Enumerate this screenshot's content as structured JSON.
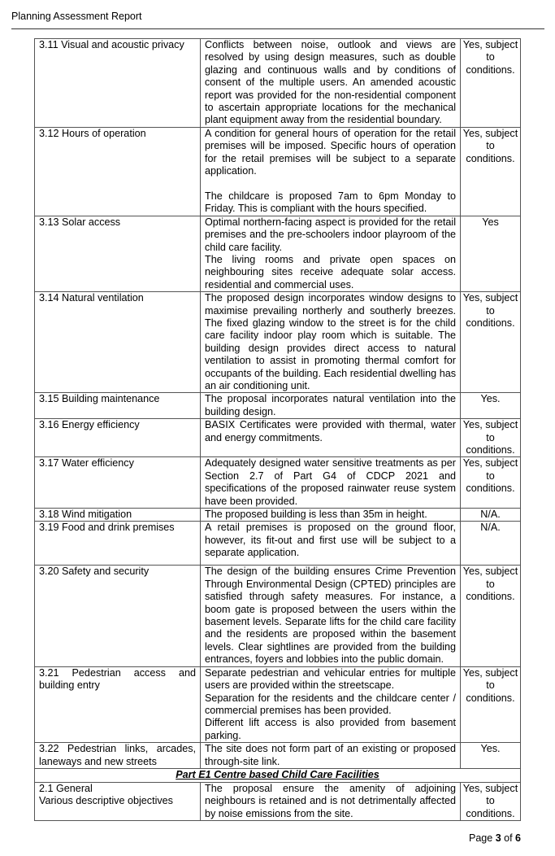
{
  "header": {
    "title": "Planning Assessment Report"
  },
  "rows": [
    {
      "clause": "3.11 Visual and acoustic privacy",
      "comment": "Conflicts between noise, outlook and views are resolved by using design measures, such as double glazing and continuous walls and by conditions of consent of the multiple users. An amended acoustic report was provided for the non-residential component to ascertain appropriate locations for the mechanical plant equipment away from the residential boundary.",
      "compliance": "Yes, subject to conditions."
    },
    {
      "clause": "3.12 Hours of operation",
      "comment": "A condition for general hours of operation for the retail premises will be imposed. Specific hours of operation for the retail premises will be subject to a separate application.\n\nThe childcare is proposed 7am to 6pm Monday to Friday. This is compliant with the hours specified.",
      "compliance": "Yes, subject to conditions."
    },
    {
      "clause": "3.13 Solar access",
      "comment": "Optimal northern-facing aspect is provided for the retail premises and the pre-schoolers indoor playroom of the child care facility.\nThe living rooms and private open spaces on neighbouring sites receive adequate solar access. residential and commercial uses.",
      "compliance": "Yes"
    },
    {
      "clause": "3.14 Natural ventilation",
      "comment": "The proposed design incorporates window designs to maximise prevailing northerly and southerly breezes. The fixed glazing window to the street is for the child care facility indoor play room which is suitable. The building design provides direct access to natural ventilation to assist in promoting thermal comfort for occupants of the building. Each residential dwelling has an air conditioning unit.",
      "compliance": "Yes, subject to conditions."
    },
    {
      "clause": "3.15 Building maintenance",
      "comment": "The proposal incorporates natural ventilation into the building design.",
      "compliance": "Yes."
    },
    {
      "clause": "3.16 Energy efficiency",
      "comment": "BASIX Certificates were provided with thermal, water and energy commitments.",
      "compliance": "Yes, subject to conditions."
    },
    {
      "clause": "3.17 Water efficiency",
      "comment": "Adequately designed water sensitive treatments as per Section 2.7 of Part G4 of CDCP 2021 and specifications of the proposed rainwater reuse system have been provided.",
      "compliance": "Yes, subject to conditions."
    },
    {
      "clause": "3.18 Wind mitigation",
      "comment": "The proposed building is less than 35m in height.",
      "compliance": "N/A."
    },
    {
      "clause": "3.19 Food and drink premises",
      "comment": "A retail premises is proposed on the ground floor, however, its fit-out and first use will be subject to a separate application.",
      "compliance": "N/A."
    },
    {
      "clause": "3.20 Safety and security",
      "comment": "The design of the building ensures Crime Prevention Through Environmental Design (CPTED) principles are satisfied through safety measures. For instance, a boom gate is proposed between the users within the basement levels. Separate lifts for the child care facility and the residents are proposed within the basement levels. Clear sightlines are provided from the building entrances, foyers and lobbies into the public domain.",
      "compliance": "Yes, subject to conditions."
    },
    {
      "clause": "3.21 Pedestrian access and building entry",
      "comment": "Separate pedestrian and vehicular entries for multiple users are provided within the streetscape.\nSeparation for the residents and the childcare center / commercial premises has been provided.\nDifferent lift access is also provided from basement parking.",
      "compliance": "Yes, subject to conditions."
    },
    {
      "clause": "3.22 Pedestrian links, arcades, laneways and new streets",
      "comment": "The site does not form part of an existing or proposed through-site link.",
      "compliance": "Yes."
    }
  ],
  "section": {
    "title": "Part E1 Centre based Child Care Facilities"
  },
  "section_rows": [
    {
      "clause": "2.1 General\nVarious descriptive objectives",
      "comment": "The proposal ensure the amenity of adjoining neighbours is retained and is not detrimentally affected by noise emissions from the site.",
      "compliance": "Yes, subject to conditions."
    }
  ],
  "footer": {
    "page_label": "Page",
    "page": "3",
    "of_label": "of",
    "total": "6"
  }
}
